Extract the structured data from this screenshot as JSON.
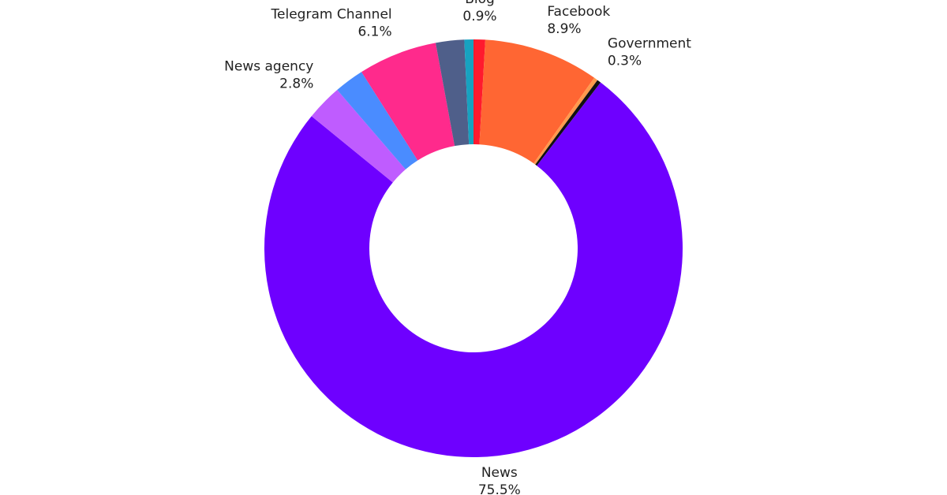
{
  "chart_data": {
    "type": "donut",
    "categories": [
      "Blog",
      "Facebook",
      null,
      "Government",
      "News",
      "News agency",
      null,
      "Telegram Channel",
      null,
      null
    ],
    "values": [
      0.9,
      8.9,
      0.3,
      0.3,
      75.5,
      2.8,
      2.3,
      6.1,
      2.2,
      0.7
    ],
    "value_labels": [
      "0.9%",
      "8.9%",
      null,
      "0.3%",
      "75.5%",
      "2.8%",
      null,
      "6.1%",
      null,
      null
    ],
    "colors": [
      "#ff1a2e",
      "#ff6633",
      "#ff9a4d",
      "#111111",
      "#6e00ff",
      "#bf5cff",
      "#4a8cff",
      "#ff2a8c",
      "#4f5f8a",
      "#17a2c0"
    ]
  }
}
